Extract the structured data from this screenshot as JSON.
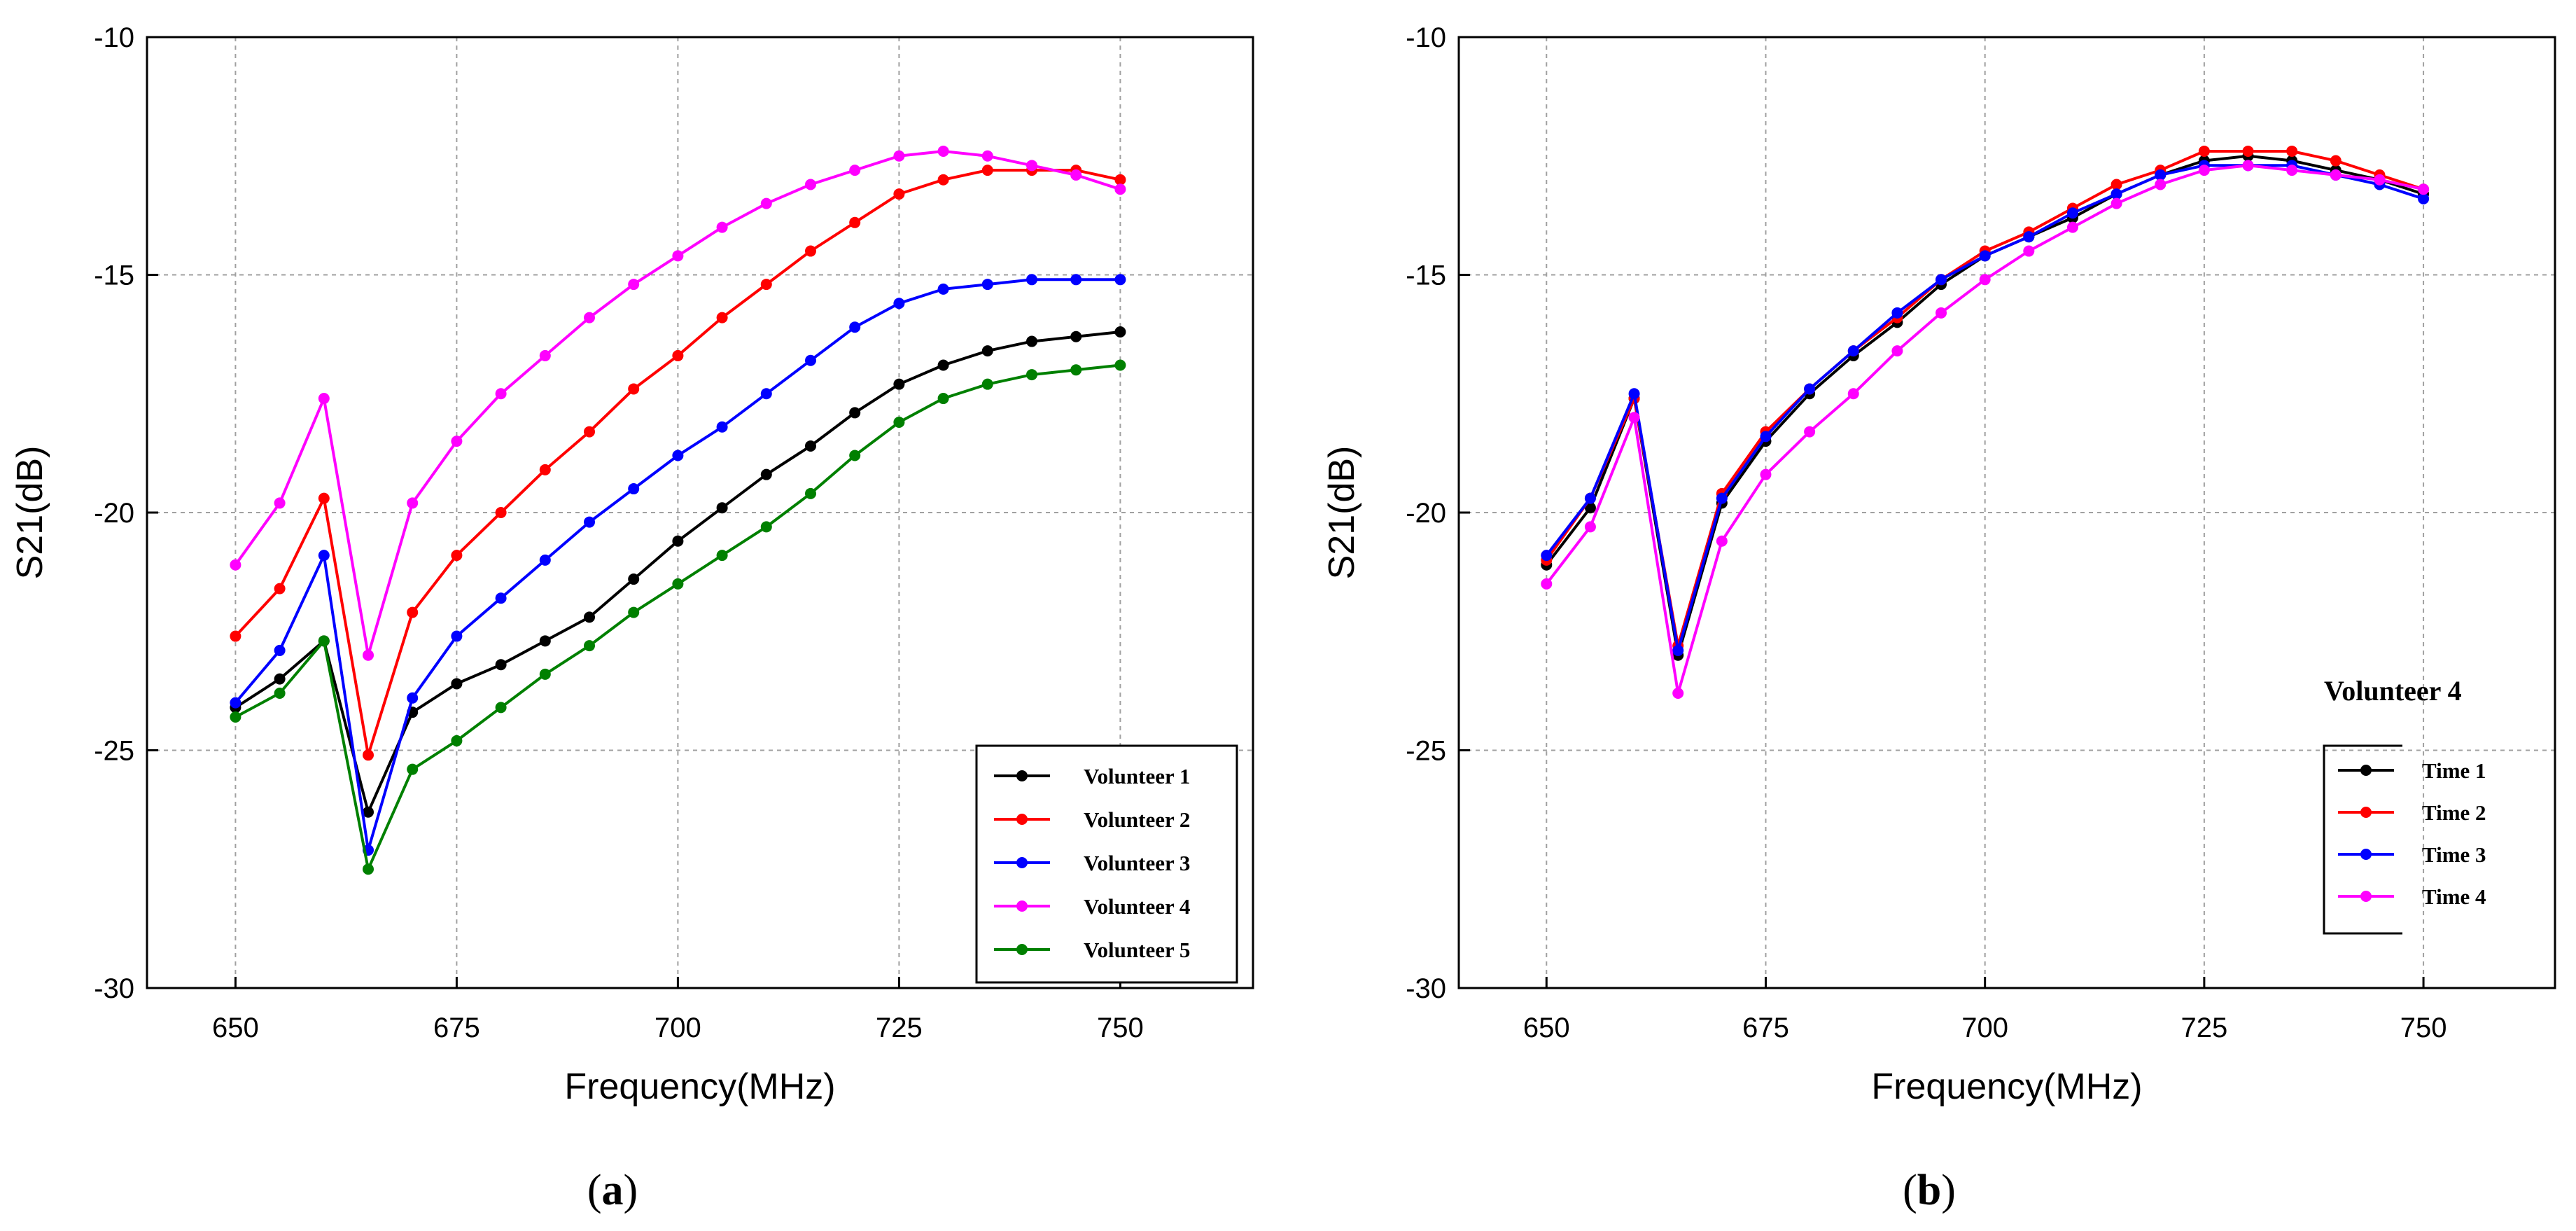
{
  "chart_data": [
    {
      "type": "line",
      "panel_label": "(a)",
      "panel_letter": "a",
      "xlabel": "Frequency(MHz)",
      "ylabel": "S21(dB)",
      "xlim": [
        640,
        765
      ],
      "ylim": [
        -30,
        -10
      ],
      "xticks": [
        650,
        675,
        700,
        725,
        750
      ],
      "yticks": [
        -10,
        -15,
        -20,
        -25,
        -30
      ],
      "grid": true,
      "legend_position": "bottom-right",
      "legend_title": "",
      "x": [
        650,
        655,
        660,
        665,
        670,
        675,
        680,
        685,
        690,
        695,
        700,
        705,
        710,
        715,
        720,
        725,
        730,
        735,
        740,
        745,
        750
      ],
      "series": [
        {
          "name": "Volunteer 1",
          "color": "#000000",
          "values": [
            -24.1,
            -23.5,
            -22.7,
            -26.3,
            -24.2,
            -23.6,
            -23.2,
            -22.7,
            -22.2,
            -21.4,
            -20.6,
            -19.9,
            -19.2,
            -18.6,
            -17.9,
            -17.3,
            -16.9,
            -16.6,
            -16.4,
            -16.3,
            -16.2
          ]
        },
        {
          "name": "Volunteer 2",
          "color": "#ff0000",
          "values": [
            -22.6,
            -21.6,
            -19.7,
            -25.1,
            -22.1,
            -20.9,
            -20.0,
            -19.1,
            -18.3,
            -17.4,
            -16.7,
            -15.9,
            -15.2,
            -14.5,
            -13.9,
            -13.3,
            -13.0,
            -12.8,
            -12.8,
            -12.8,
            -13.0
          ]
        },
        {
          "name": "Volunteer 3",
          "color": "#0000ff",
          "values": [
            -24.0,
            -22.9,
            -20.9,
            -27.1,
            -23.9,
            -22.6,
            -21.8,
            -21.0,
            -20.2,
            -19.5,
            -18.8,
            -18.2,
            -17.5,
            -16.8,
            -16.1,
            -15.6,
            -15.3,
            -15.2,
            -15.1,
            -15.1,
            -15.1
          ]
        },
        {
          "name": "Volunteer 4",
          "color": "#ff00ff",
          "values": [
            -21.1,
            -19.8,
            -17.6,
            -23.0,
            -19.8,
            -18.5,
            -17.5,
            -16.7,
            -15.9,
            -15.2,
            -14.6,
            -14.0,
            -13.5,
            -13.1,
            -12.8,
            -12.5,
            -12.4,
            -12.5,
            -12.7,
            -12.9,
            -13.2
          ]
        },
        {
          "name": "Volunteer 5",
          "color": "#008000",
          "values": [
            -24.3,
            -23.8,
            -22.7,
            -27.5,
            -25.4,
            -24.8,
            -24.1,
            -23.4,
            -22.8,
            -22.1,
            -21.5,
            -20.9,
            -20.3,
            -19.6,
            -18.8,
            -18.1,
            -17.6,
            -17.3,
            -17.1,
            -17.0,
            -16.9
          ]
        }
      ]
    },
    {
      "type": "line",
      "panel_label": "(b)",
      "panel_letter": "b",
      "xlabel": "Frequency(MHz)",
      "ylabel": "S21(dB)",
      "xlim": [
        640,
        765
      ],
      "ylim": [
        -30,
        -10
      ],
      "xticks": [
        650,
        675,
        700,
        725,
        750
      ],
      "yticks": [
        -10,
        -15,
        -20,
        -25,
        -30
      ],
      "grid": true,
      "legend_position": "bottom-right",
      "legend_title": "Volunteer 4",
      "x": [
        650,
        655,
        660,
        665,
        670,
        675,
        680,
        685,
        690,
        695,
        700,
        705,
        710,
        715,
        720,
        725,
        730,
        735,
        740,
        745,
        750
      ],
      "series": [
        {
          "name": "Time 1",
          "color": "#000000",
          "values": [
            -21.1,
            -19.9,
            -17.6,
            -23.0,
            -19.8,
            -18.5,
            -17.5,
            -16.7,
            -16.0,
            -15.2,
            -14.6,
            -14.2,
            -13.8,
            -13.3,
            -12.9,
            -12.6,
            -12.5,
            -12.6,
            -12.8,
            -13.0,
            -13.3
          ]
        },
        {
          "name": "Time 2",
          "color": "#ff0000",
          "values": [
            -21.0,
            -19.7,
            -17.6,
            -22.8,
            -19.6,
            -18.3,
            -17.4,
            -16.6,
            -15.9,
            -15.1,
            -14.5,
            -14.1,
            -13.6,
            -13.1,
            -12.8,
            -12.4,
            -12.4,
            -12.4,
            -12.6,
            -12.9,
            -13.2
          ]
        },
        {
          "name": "Time 3",
          "color": "#0000ff",
          "values": [
            -20.9,
            -19.7,
            -17.5,
            -22.9,
            -19.7,
            -18.4,
            -17.4,
            -16.6,
            -15.8,
            -15.1,
            -14.6,
            -14.2,
            -13.7,
            -13.3,
            -12.9,
            -12.7,
            -12.7,
            -12.7,
            -12.9,
            -13.1,
            -13.4
          ]
        },
        {
          "name": "Time 4",
          "color": "#ff00ff",
          "values": [
            -21.5,
            -20.3,
            -18.0,
            -23.8,
            -20.6,
            -19.2,
            -18.3,
            -17.5,
            -16.6,
            -15.8,
            -15.1,
            -14.5,
            -14.0,
            -13.5,
            -13.1,
            -12.8,
            -12.7,
            -12.8,
            -12.9,
            -13.0,
            -13.2
          ]
        }
      ]
    }
  ]
}
